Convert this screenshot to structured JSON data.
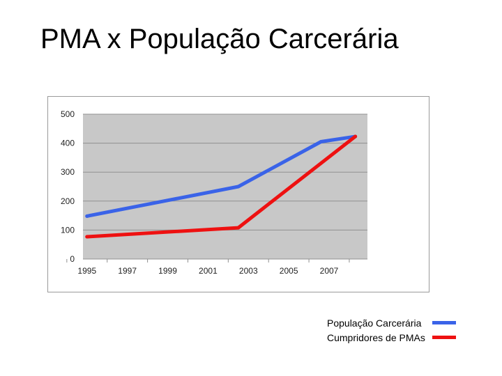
{
  "slide": {
    "title": "PMA x  População Carcerária"
  },
  "chart_data": {
    "type": "line",
    "title": "",
    "xlabel": "",
    "ylabel": "",
    "xlim": [
      1994.8,
      2008.9
    ],
    "ylim": [
      0,
      500
    ],
    "x_ticks": [
      "1995",
      "1997",
      "1999",
      "2001",
      "2003",
      "2005",
      "2007"
    ],
    "y_ticks": [
      "500",
      "400",
      "300",
      "200",
      "100",
      "0"
    ],
    "grid": true,
    "legend_position": "bottom-right",
    "series": [
      {
        "name": "População Carcerária",
        "color": "#3a63e8",
        "x": [
          1995,
          2002.5,
          2006.6,
          2008.3
        ],
        "y": [
          148,
          250,
          405,
          423
        ]
      },
      {
        "name": "Cumpridores de PMAs",
        "color": "#ee1111",
        "x": [
          1995,
          2002.5,
          2008.3
        ],
        "y": [
          77,
          108,
          423
        ]
      }
    ]
  }
}
